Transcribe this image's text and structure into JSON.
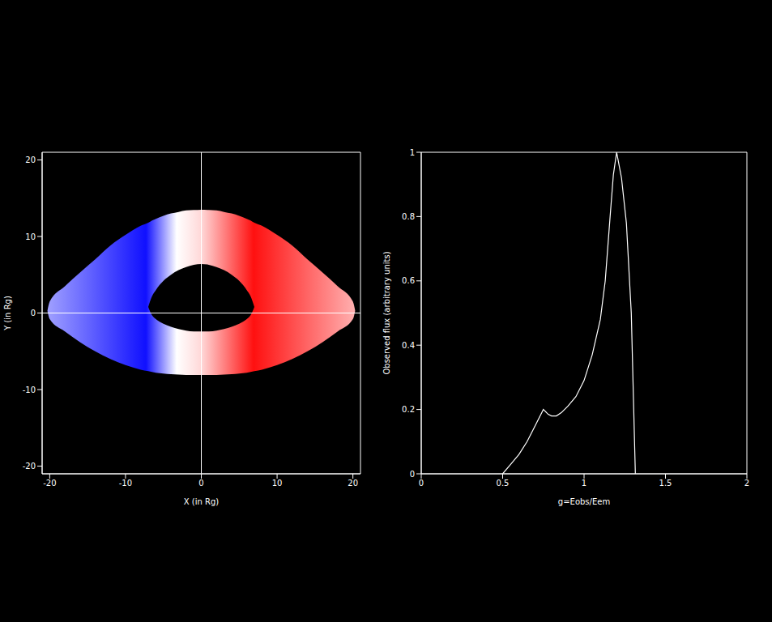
{
  "chart_data": [
    {
      "type": "area",
      "xlabel": "X (in Rg)",
      "ylabel": "Y (in Rg)",
      "xlim": [
        -21,
        21
      ],
      "ylim": [
        -21,
        21
      ],
      "xticks": [
        -20,
        -10,
        0,
        10,
        20
      ],
      "yticks": [
        -20,
        -10,
        0,
        10,
        20
      ],
      "reference_lines": {
        "x": 0,
        "y": 0
      },
      "disk": {
        "x": [
          -20.3,
          -20,
          -18,
          -16,
          -14,
          -12,
          -10,
          -8,
          -7,
          -6.5,
          -6,
          -5,
          -4,
          -3,
          -2,
          -1,
          0,
          1,
          2,
          3,
          4,
          5,
          6,
          6.5,
          7,
          8,
          10,
          12,
          14,
          16,
          18,
          20,
          20.3
        ],
        "outer_upper": [
          0.3,
          1.5,
          3.5,
          5.3,
          7,
          8.8,
          10.2,
          11.4,
          11.8,
          12.1,
          12.3,
          12.7,
          13,
          13.2,
          13.4,
          13.45,
          13.5,
          13.45,
          13.4,
          13.2,
          13,
          12.7,
          12.3,
          12.1,
          11.8,
          11.4,
          10.2,
          8.8,
          7,
          5.3,
          3.5,
          1.5,
          0.3
        ],
        "outer_lower": [
          0.3,
          -0.8,
          -2.4,
          -3.8,
          -5,
          -6,
          -6.8,
          -7.4,
          -7.6,
          -7.7,
          -7.8,
          -7.9,
          -8,
          -8.05,
          -8.1,
          -8.1,
          -8.1,
          -8.1,
          -8.1,
          -8.05,
          -8,
          -7.9,
          -7.8,
          -7.7,
          -7.6,
          -7.4,
          -6.8,
          -6,
          -5,
          -3.8,
          -2.4,
          -0.8,
          0.3
        ],
        "inner_upper": [
          null,
          null,
          null,
          null,
          null,
          null,
          null,
          null,
          0.8,
          2.2,
          3,
          4.2,
          5,
          5.6,
          6,
          6.3,
          6.4,
          6.3,
          6,
          5.6,
          5,
          4.2,
          3,
          2.2,
          0.8,
          null,
          null,
          null,
          null,
          null,
          null,
          null,
          null
        ],
        "inner_lower": [
          null,
          null,
          null,
          null,
          null,
          null,
          null,
          null,
          0.8,
          -0.3,
          -0.8,
          -1.4,
          -1.8,
          -2.1,
          -2.3,
          -2.4,
          -2.4,
          -2.4,
          -2.3,
          -2.1,
          -1.8,
          -1.4,
          -0.8,
          -0.3,
          0.8,
          null,
          null,
          null,
          null,
          null,
          null,
          null,
          null
        ]
      }
    },
    {
      "type": "line",
      "xlabel": "g=Eobs/Eem",
      "ylabel": "Observed flux (arbitrary units)",
      "xlim": [
        0,
        2
      ],
      "ylim": [
        0,
        1
      ],
      "xticks": [
        0,
        0.5,
        1,
        1.5,
        2
      ],
      "yticks": [
        0,
        0.2,
        0.4,
        0.6,
        0.8,
        1
      ],
      "color": "#ffffff",
      "x": [
        0.5,
        0.55,
        0.6,
        0.65,
        0.7,
        0.75,
        0.78,
        0.8,
        0.83,
        0.86,
        0.9,
        0.95,
        1.0,
        1.05,
        1.1,
        1.13,
        1.16,
        1.18,
        1.2,
        1.23,
        1.26,
        1.29,
        1.31,
        1.315
      ],
      "values": [
        0,
        0.03,
        0.06,
        0.1,
        0.15,
        0.2,
        0.185,
        0.18,
        0.18,
        0.19,
        0.21,
        0.24,
        0.29,
        0.37,
        0.48,
        0.6,
        0.8,
        0.93,
        1.0,
        0.92,
        0.78,
        0.5,
        0.1,
        0
      ]
    }
  ]
}
